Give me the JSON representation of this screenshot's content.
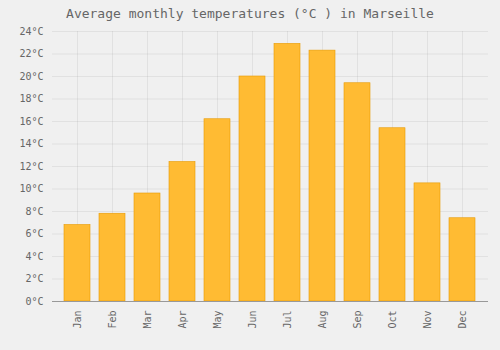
{
  "chart_data": {
    "type": "bar",
    "title": "Average monthly temperatures (°C ) in Marseille",
    "categories": [
      "Jan",
      "Feb",
      "Mar",
      "Apr",
      "May",
      "Jun",
      "Jul",
      "Aug",
      "Sep",
      "Oct",
      "Nov",
      "Dec"
    ],
    "values": [
      6.8,
      7.8,
      9.6,
      12.4,
      16.2,
      20.0,
      22.9,
      22.3,
      19.4,
      15.4,
      10.5,
      7.4
    ],
    "color": "#FFBB33",
    "ylim": [
      0,
      24
    ],
    "yticks": [
      {
        "value": 0,
        "label": "0°C"
      },
      {
        "value": 2,
        "label": "2°C"
      },
      {
        "value": 4,
        "label": "4°C"
      },
      {
        "value": 6,
        "label": "6°C"
      },
      {
        "value": 8,
        "label": "8°C"
      },
      {
        "value": 10,
        "label": "10°C"
      },
      {
        "value": 12,
        "label": "12°C"
      },
      {
        "value": 14,
        "label": "14°C"
      },
      {
        "value": 16,
        "label": "16°C"
      },
      {
        "value": 18,
        "label": "18°C"
      },
      {
        "value": 20,
        "label": "20°C"
      },
      {
        "value": 22,
        "label": "22°C"
      },
      {
        "value": 24,
        "label": "24°C"
      }
    ],
    "grid": true
  }
}
